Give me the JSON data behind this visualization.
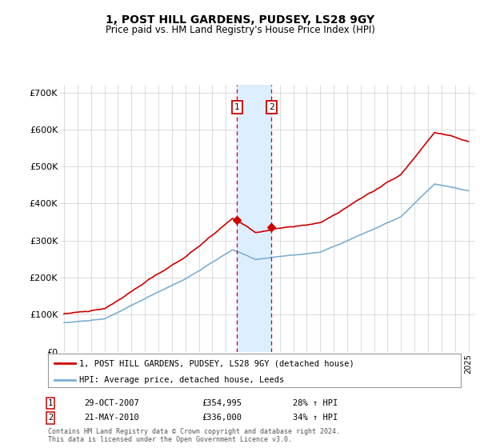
{
  "title": "1, POST HILL GARDENS, PUDSEY, LS28 9GY",
  "subtitle": "Price paid vs. HM Land Registry's House Price Index (HPI)",
  "ylim": [
    0,
    720000
  ],
  "yticks": [
    0,
    100000,
    200000,
    300000,
    400000,
    500000,
    600000,
    700000
  ],
  "ytick_labels": [
    "£0",
    "£100K",
    "£200K",
    "£300K",
    "£400K",
    "£500K",
    "£600K",
    "£700K"
  ],
  "xlim_start": 1994.7,
  "xlim_end": 2025.5,
  "sale1_x": 2007.83,
  "sale1_y": 354995,
  "sale2_x": 2010.38,
  "sale2_y": 336000,
  "sale1_date": "29-OCT-2007",
  "sale1_price": "£354,995",
  "sale1_hpi": "28% ↑ HPI",
  "sale2_date": "21-MAY-2010",
  "sale2_price": "£336,000",
  "sale2_hpi": "34% ↑ HPI",
  "legend_line1": "1, POST HILL GARDENS, PUDSEY, LS28 9GY (detached house)",
  "legend_line2": "HPI: Average price, detached house, Leeds",
  "footer": "Contains HM Land Registry data © Crown copyright and database right 2024.\nThis data is licensed under the Open Government Licence v3.0.",
  "hpi_color": "#7bafd4",
  "price_color": "#cc0000",
  "shade_color": "#ddeeff",
  "grid_color": "#cccccc",
  "background_color": "#ffffff",
  "title_fontsize": 10,
  "subtitle_fontsize": 8.5
}
